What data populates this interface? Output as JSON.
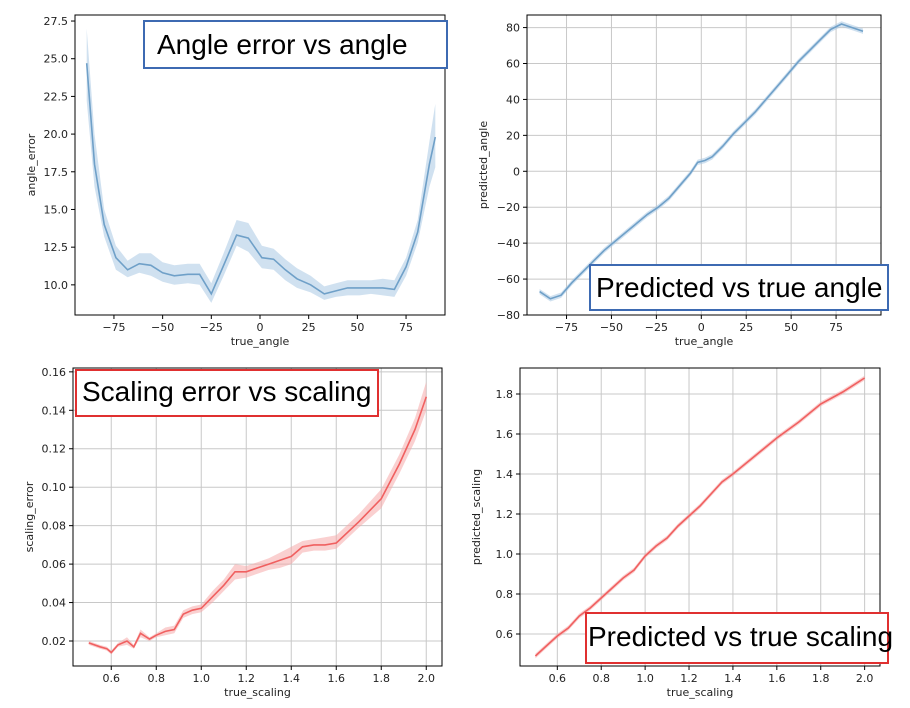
{
  "chart_data": [
    {
      "type": "line",
      "title": "Angle error vs angle",
      "xlabel": "true_angle",
      "ylabel": "angle_error",
      "xlim": [
        -95,
        95
      ],
      "ylim": [
        8.0,
        27.9
      ],
      "xticks": [
        -75,
        -50,
        -25,
        0,
        25,
        50,
        75
      ],
      "yticks": [
        10.0,
        12.5,
        15.0,
        17.5,
        20.0,
        22.5,
        25.0,
        27.5
      ],
      "xtick_labels": [
        "−75",
        "−50",
        "−25",
        "0",
        "25",
        "50",
        "75"
      ],
      "ytick_labels": [
        "10.0",
        "12.5",
        "15.0",
        "17.5",
        "20.0",
        "22.5",
        "25.0",
        "27.5"
      ],
      "grid": false,
      "color": "#6fa0c8",
      "band_color": "#a9c9e4",
      "box_color": "#3d6ab2",
      "series": [
        {
          "x": [
            -89,
            -85,
            -80,
            -74,
            -68,
            -62,
            -56,
            -50,
            -44,
            -37,
            -31,
            -25,
            -19,
            -12,
            -6,
            1,
            7,
            13,
            19,
            26,
            33,
            39,
            45,
            51,
            57,
            63,
            69,
            75,
            81,
            87,
            90
          ],
          "y": [
            24.7,
            18.0,
            14.0,
            11.8,
            11.0,
            11.4,
            11.3,
            10.8,
            10.6,
            10.7,
            10.7,
            9.4,
            11.2,
            13.3,
            13.1,
            11.8,
            11.7,
            11.0,
            10.4,
            10.0,
            9.4,
            9.6,
            9.8,
            9.8,
            9.8,
            9.8,
            9.7,
            11.2,
            13.5,
            18.0,
            19.8
          ],
          "lower": [
            22.2,
            16.5,
            13.2,
            11.0,
            10.5,
            10.8,
            10.6,
            10.2,
            10.0,
            10.1,
            10.0,
            8.8,
            10.5,
            12.6,
            12.2,
            11.1,
            11.0,
            10.3,
            9.8,
            9.5,
            9.0,
            9.2,
            9.3,
            9.3,
            9.4,
            9.3,
            9.2,
            10.6,
            12.8,
            16.5,
            17.8
          ],
          "upper": [
            27.0,
            20.0,
            15.0,
            12.6,
            11.6,
            12.1,
            12.1,
            11.5,
            11.3,
            11.4,
            11.4,
            10.1,
            12.0,
            14.3,
            14.1,
            12.6,
            12.4,
            11.7,
            11.1,
            10.6,
            9.9,
            10.1,
            10.3,
            10.3,
            10.3,
            10.4,
            10.3,
            11.8,
            14.3,
            19.5,
            22.0
          ]
        }
      ]
    },
    {
      "type": "line",
      "title": "Predicted vs true angle",
      "xlabel": "true_angle",
      "ylabel": "predicted_angle",
      "xlim": [
        -97,
        100
      ],
      "ylim": [
        -80,
        87
      ],
      "xticks": [
        -75,
        -50,
        -25,
        0,
        25,
        50,
        75
      ],
      "yticks": [
        -80,
        -60,
        -40,
        -20,
        0,
        20,
        40,
        60,
        80
      ],
      "xtick_labels": [
        "−75",
        "−50",
        "−25",
        "0",
        "25",
        "50",
        "75"
      ],
      "ytick_labels": [
        "−80",
        "−60",
        "−40",
        "−20",
        "0",
        "20",
        "40",
        "60",
        "80"
      ],
      "grid": true,
      "color": "#6fa0c8",
      "band_color": "#a9c9e4",
      "box_color": "#3d6ab2",
      "series": [
        {
          "x": [
            -90,
            -84,
            -78,
            -72,
            -66,
            -60,
            -54,
            -48,
            -42,
            -36,
            -30,
            -24,
            -18,
            -12,
            -6,
            -2,
            2,
            6,
            12,
            18,
            24,
            30,
            36,
            42,
            48,
            54,
            60,
            66,
            72,
            78,
            84,
            90
          ],
          "y": [
            -67,
            -71,
            -69,
            -62,
            -56,
            -50,
            -44,
            -39,
            -34,
            -29,
            -24,
            -20,
            -15,
            -8,
            -1,
            5,
            6,
            8,
            14,
            21,
            27,
            33,
            40,
            47,
            54,
            61,
            67,
            73,
            79,
            82,
            80,
            78
          ],
          "band": 1.5
        }
      ]
    },
    {
      "type": "line",
      "title": "Scaling error vs scaling",
      "xlabel": "true_scaling",
      "ylabel": "scaling_error",
      "xlim": [
        0.43,
        2.07
      ],
      "ylim": [
        0.007,
        0.162
      ],
      "xticks": [
        0.6,
        0.8,
        1.0,
        1.2,
        1.4,
        1.6,
        1.8,
        2.0
      ],
      "yticks": [
        0.02,
        0.04,
        0.06,
        0.08,
        0.1,
        0.12,
        0.14,
        0.16
      ],
      "xtick_labels": [
        "0.6",
        "0.8",
        "1.0",
        "1.2",
        "1.4",
        "1.6",
        "1.8",
        "2.0"
      ],
      "ytick_labels": [
        "0.02",
        "0.04",
        "0.06",
        "0.08",
        "0.10",
        "0.12",
        "0.14",
        "0.16"
      ],
      "grid": true,
      "color": "#f06060",
      "band_color": "#f5a9a9",
      "box_color": "#e03030",
      "series": [
        {
          "x": [
            0.5,
            0.55,
            0.58,
            0.6,
            0.63,
            0.67,
            0.7,
            0.73,
            0.77,
            0.8,
            0.84,
            0.88,
            0.92,
            0.96,
            1.0,
            1.05,
            1.1,
            1.15,
            1.2,
            1.25,
            1.3,
            1.35,
            1.4,
            1.45,
            1.5,
            1.55,
            1.6,
            1.7,
            1.8,
            1.88,
            1.95,
            2.0
          ],
          "y": [
            0.019,
            0.017,
            0.016,
            0.014,
            0.018,
            0.02,
            0.017,
            0.024,
            0.021,
            0.023,
            0.025,
            0.026,
            0.034,
            0.036,
            0.037,
            0.043,
            0.049,
            0.056,
            0.056,
            0.058,
            0.06,
            0.062,
            0.064,
            0.069,
            0.07,
            0.07,
            0.071,
            0.082,
            0.094,
            0.112,
            0.13,
            0.147
          ],
          "lower": [
            0.018,
            0.016,
            0.015,
            0.013,
            0.017,
            0.018,
            0.016,
            0.022,
            0.02,
            0.022,
            0.023,
            0.024,
            0.032,
            0.034,
            0.035,
            0.04,
            0.046,
            0.052,
            0.053,
            0.055,
            0.057,
            0.058,
            0.06,
            0.066,
            0.067,
            0.067,
            0.068,
            0.079,
            0.089,
            0.107,
            0.124,
            0.14
          ],
          "upper": [
            0.02,
            0.018,
            0.017,
            0.015,
            0.019,
            0.022,
            0.018,
            0.026,
            0.022,
            0.024,
            0.027,
            0.028,
            0.036,
            0.038,
            0.039,
            0.046,
            0.052,
            0.06,
            0.059,
            0.061,
            0.063,
            0.066,
            0.069,
            0.072,
            0.073,
            0.074,
            0.075,
            0.086,
            0.099,
            0.117,
            0.136,
            0.155
          ]
        }
      ]
    },
    {
      "type": "line",
      "title": "Predicted vs true scaling",
      "xlabel": "true_scaling",
      "ylabel": "predicted_scaling",
      "xlim": [
        0.43,
        2.07
      ],
      "ylim": [
        0.44,
        1.93
      ],
      "xticks": [
        0.6,
        0.8,
        1.0,
        1.2,
        1.4,
        1.6,
        1.8,
        2.0
      ],
      "yticks": [
        0.6,
        0.8,
        1.0,
        1.2,
        1.4,
        1.6,
        1.8
      ],
      "xtick_labels": [
        "0.6",
        "0.8",
        "1.0",
        "1.2",
        "1.4",
        "1.6",
        "1.8",
        "2.0"
      ],
      "ytick_labels": [
        "0.6",
        "0.8",
        "1.0",
        "1.2",
        "1.4",
        "1.6",
        "1.8"
      ],
      "grid": true,
      "color": "#f06060",
      "band_color": "#f5a9a9",
      "box_color": "#e03030",
      "series": [
        {
          "x": [
            0.5,
            0.55,
            0.6,
            0.65,
            0.7,
            0.75,
            0.8,
            0.85,
            0.9,
            0.95,
            1.0,
            1.05,
            1.1,
            1.15,
            1.2,
            1.25,
            1.3,
            1.35,
            1.4,
            1.5,
            1.6,
            1.7,
            1.8,
            1.9,
            2.0
          ],
          "y": [
            0.49,
            0.54,
            0.59,
            0.63,
            0.69,
            0.73,
            0.78,
            0.83,
            0.88,
            0.92,
            0.99,
            1.04,
            1.08,
            1.14,
            1.19,
            1.24,
            1.3,
            1.36,
            1.4,
            1.49,
            1.58,
            1.66,
            1.75,
            1.81,
            1.88
          ],
          "band": 0.012
        }
      ]
    }
  ]
}
